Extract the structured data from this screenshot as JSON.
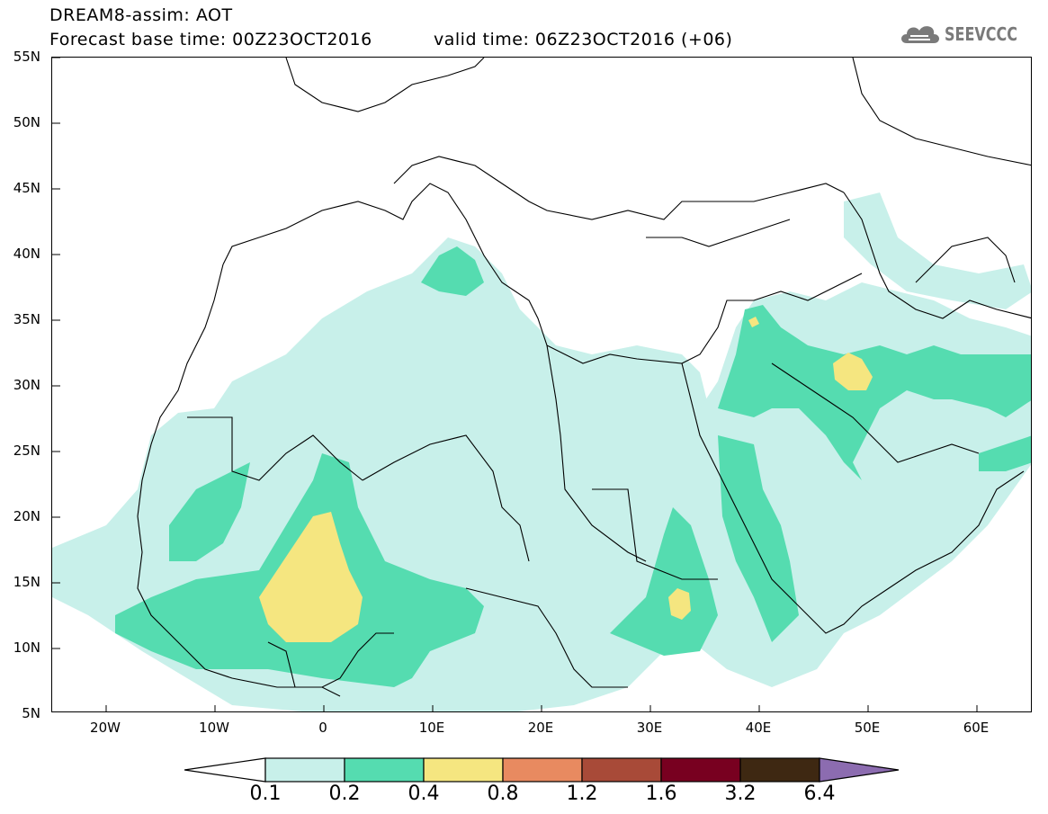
{
  "header": {
    "line1": "DREAM8-assim: AOT",
    "line2_left": "Forecast base time: 00Z23OCT2016",
    "line2_right": "valid time: 06Z23OCT2016 (+06)",
    "logo_text": "SEEVCCC"
  },
  "map": {
    "lat_labels": [
      "55N",
      "50N",
      "45N",
      "40N",
      "35N",
      "30N",
      "25N",
      "20N",
      "15N",
      "10N",
      "5N"
    ],
    "lon_labels": [
      "20W",
      "10W",
      "0",
      "10E",
      "20E",
      "30E",
      "40E",
      "50E",
      "60E"
    ]
  },
  "colorbar": {
    "colors": [
      "#c8f0ea",
      "#55dcb0",
      "#f5e680",
      "#e88a60",
      "#a84a38",
      "#780020",
      "#3e2812",
      "#8c6cb0"
    ],
    "labels": [
      "0.1",
      "0.2",
      "0.4",
      "0.8",
      "1.2",
      "1.6",
      "3.2",
      "6.4"
    ]
  }
}
